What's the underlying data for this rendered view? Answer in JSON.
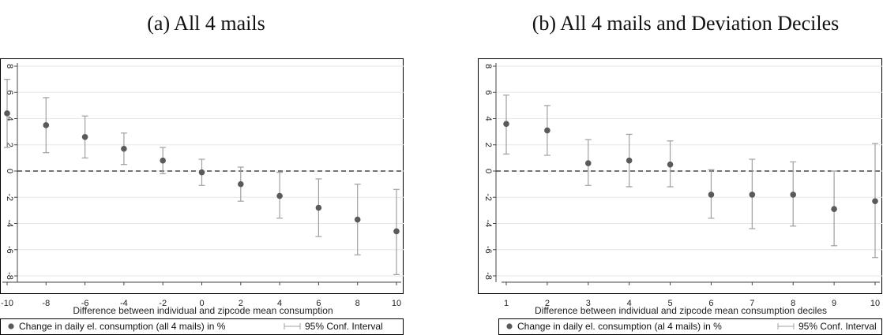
{
  "chart_data": [
    {
      "type": "scatter",
      "title": "(a) All 4 mails",
      "xlabel": "Difference between individual and zipcode mean consumption",
      "ylabel": "",
      "x_ticks": [
        "-10",
        "-8",
        "-6",
        "-4",
        "-2",
        "0",
        "2",
        "4",
        "6",
        "8",
        "10"
      ],
      "y_ticks": [
        "8",
        "6",
        "4",
        "2",
        "0",
        "-2",
        "-4",
        "-6",
        "-8"
      ],
      "xlim": [
        -10,
        10
      ],
      "ylim": [
        -8,
        8
      ],
      "grid": true,
      "reference_line": 0,
      "legend_position": "bottom",
      "colors": {
        "point": "#5a5a5a",
        "ci": "#a0a0a0",
        "refline": "#222222"
      },
      "series": [
        {
          "name": "Change in daily el. consumption (all 4 mails) in %",
          "x": [
            -10,
            -8,
            -6,
            -4,
            -2,
            0,
            2,
            4,
            6,
            8,
            10
          ],
          "y": [
            4.4,
            3.5,
            2.6,
            1.7,
            0.8,
            -0.1,
            -1.0,
            -1.9,
            -2.8,
            -3.7,
            -4.6
          ],
          "ci_low": [
            1.8,
            1.4,
            1.0,
            0.5,
            -0.2,
            -1.1,
            -2.3,
            -3.6,
            -5.0,
            -6.4,
            -7.9
          ],
          "ci_high": [
            7.0,
            5.6,
            4.2,
            2.9,
            1.8,
            0.9,
            0.3,
            -0.1,
            -0.6,
            -1.0,
            -1.4
          ]
        }
      ],
      "ci_legend": "95% Conf. Interval"
    },
    {
      "type": "scatter",
      "title": "(b) All 4 mails and Deviation Deciles",
      "xlabel": "Difference between individual and zipcode mean consumption deciles",
      "ylabel": "",
      "x_ticks": [
        "1",
        "2",
        "3",
        "4",
        "5",
        "6",
        "7",
        "8",
        "9",
        "10"
      ],
      "y_ticks": [
        "8",
        "6",
        "4",
        "2",
        "0",
        "-2",
        "-4",
        "-6",
        "-8"
      ],
      "xlim": [
        1,
        10
      ],
      "ylim": [
        -8,
        8
      ],
      "grid": true,
      "reference_line": 0,
      "legend_position": "bottom",
      "colors": {
        "point": "#5a5a5a",
        "ci": "#a0a0a0",
        "refline": "#222222"
      },
      "series": [
        {
          "name": "Change in daily el. consumption (al 4 mails) in %",
          "x": [
            1,
            2,
            3,
            4,
            5,
            6,
            7,
            8,
            9,
            10
          ],
          "y": [
            3.6,
            3.1,
            0.6,
            0.8,
            0.5,
            -1.8,
            -1.8,
            -1.8,
            -2.9,
            -2.3
          ],
          "ci_low": [
            1.3,
            1.2,
            -1.1,
            -1.2,
            -1.2,
            -3.6,
            -4.4,
            -4.2,
            -5.7,
            -6.6
          ],
          "ci_high": [
            5.8,
            5.0,
            2.4,
            2.8,
            2.3,
            0.1,
            0.9,
            0.7,
            0.0,
            2.1
          ]
        }
      ],
      "ci_legend": "95% Conf. Interval"
    }
  ]
}
